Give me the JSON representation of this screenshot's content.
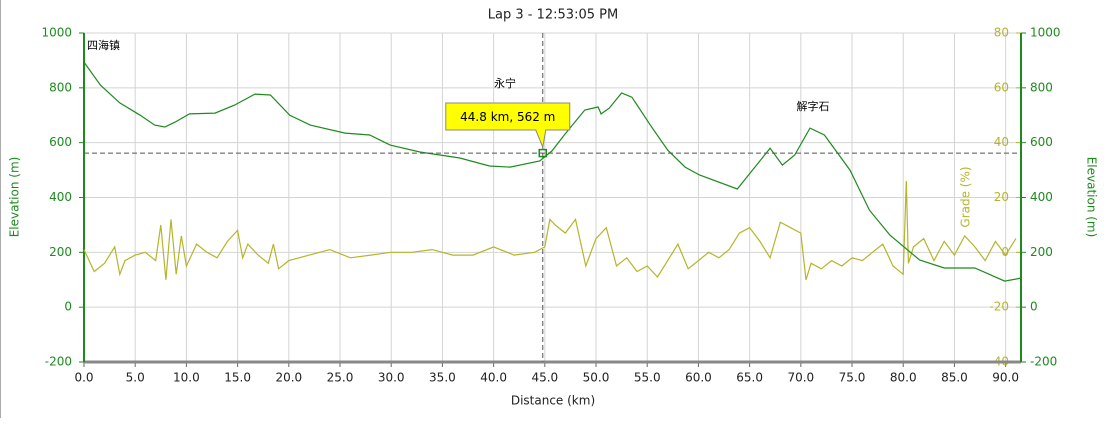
{
  "chart_data": {
    "type": "line",
    "title": "Lap 3 - 12:53:05 PM",
    "x_label": "Distance (km)",
    "y_label": "Elevation (m)",
    "y2_label": "Grade (%)",
    "y3_label": "Elevation (m)",
    "xlim": [
      0,
      91.5
    ],
    "xticks": [
      {
        "value": 0,
        "label": "0.0"
      },
      {
        "value": 5,
        "label": "5.0"
      },
      {
        "value": 10,
        "label": "10.0"
      },
      {
        "value": 15,
        "label": "15.0"
      },
      {
        "value": 20,
        "label": "20.0"
      },
      {
        "value": 25,
        "label": "25.0"
      },
      {
        "value": 30,
        "label": "30.0"
      },
      {
        "value": 35,
        "label": "35.0"
      },
      {
        "value": 40,
        "label": "40.0"
      },
      {
        "value": 45,
        "label": "45.0"
      },
      {
        "value": 50,
        "label": "50.0"
      },
      {
        "value": 55,
        "label": "55.0"
      },
      {
        "value": 60,
        "label": "60.0"
      },
      {
        "value": 65,
        "label": "65.0"
      },
      {
        "value": 70,
        "label": "70.0"
      },
      {
        "value": 75,
        "label": "75.0"
      },
      {
        "value": 80,
        "label": "80.0"
      },
      {
        "value": 85,
        "label": "85.0"
      },
      {
        "value": 90,
        "label": "90.0"
      }
    ],
    "ylim": [
      -200,
      1000
    ],
    "yticks": [
      -200,
      0,
      200,
      400,
      600,
      800,
      1000
    ],
    "y2lim": [
      -40,
      80
    ],
    "y2ticks": [
      -40,
      -20,
      0,
      20,
      40,
      60,
      80
    ],
    "y3ticks": [
      -200,
      0,
      200,
      400,
      600,
      800,
      1000
    ],
    "grid": true,
    "series": [
      {
        "color": "#1e8a1e",
        "x": [
          0,
          1.6,
          3.5,
          5.5,
          6.9,
          7.9,
          8.9,
          10.3,
          12.8,
          14.7,
          16.7,
          18.2,
          20.1,
          22.1,
          25.5,
          27.9,
          29.9,
          32.8,
          36.7,
          39.6,
          41.6,
          44.5,
          45.7,
          46.9,
          48.9,
          50.2,
          50.5,
          51.3,
          52.5,
          53.5,
          55.3,
          57.0,
          58.7,
          60.1,
          63.8,
          67.0,
          68.2,
          69.4,
          70.9,
          72.3,
          74.8,
          76.7,
          78.7,
          81.6,
          84.0,
          87.0,
          89.9,
          91.5
        ],
        "values": [
          894,
          810,
          745,
          700,
          664,
          657,
          675,
          705,
          708,
          737,
          777,
          774,
          700,
          664,
          635,
          628,
          591,
          566,
          544,
          515,
          511,
          533,
          570,
          628,
          719,
          730,
          705,
          726,
          781,
          766,
          664,
          573,
          511,
          482,
          431,
          580,
          518,
          555,
          653,
          628,
          500,
          354,
          263,
          172,
          143,
          143,
          95,
          106
        ]
      },
      {
        "color": "#b5b52a",
        "axis": "y2",
        "x": [
          0,
          1,
          2,
          3,
          3.5,
          4,
          5,
          6,
          7,
          7.5,
          8,
          8.5,
          9,
          9.5,
          10,
          11,
          12,
          13,
          14,
          15,
          15.5,
          16,
          17,
          18,
          18.5,
          19,
          20,
          22,
          24,
          26,
          28,
          30,
          32,
          34,
          36,
          38,
          40,
          42,
          44,
          45,
          45.5,
          46,
          47,
          48,
          49,
          50,
          51,
          52,
          53,
          54,
          55,
          56,
          57,
          58,
          59,
          60,
          61,
          62,
          63,
          64,
          65,
          66,
          67,
          68,
          69,
          70,
          70.5,
          71,
          72,
          73,
          74,
          75,
          76,
          77,
          78,
          79,
          80,
          80.3,
          80.5,
          81,
          82,
          83,
          84,
          85,
          86,
          87,
          88,
          89,
          90,
          91
        ],
        "values": [
          1,
          -7,
          -4,
          2,
          -8,
          -3,
          -1,
          0,
          -3,
          10,
          -10,
          12,
          -8,
          6,
          -5,
          3,
          0,
          -2,
          4,
          8,
          -2,
          3,
          -1,
          -4,
          3,
          -6,
          -3,
          -1,
          1,
          -2,
          -1,
          0,
          0,
          1,
          -1,
          -1,
          2,
          -1,
          0,
          2,
          12,
          10,
          7,
          12,
          -5,
          5,
          9,
          -5,
          -2,
          -7,
          -5,
          -9,
          -3,
          3,
          -6,
          -3,
          0,
          -2,
          1,
          7,
          9,
          4,
          -2,
          11,
          9,
          7,
          -10,
          -4,
          -6,
          -3,
          -5,
          -2,
          -3,
          0,
          3,
          -5,
          -8,
          26,
          -4,
          2,
          5,
          -3,
          4,
          -1,
          6,
          2,
          -3,
          4,
          -1,
          5
        ]
      }
    ],
    "crosshair": {
      "x": 44.8,
      "y": 562,
      "label": "44.8 km, 562 m"
    },
    "annotations": [
      "四海镇",
      "永宁",
      "解字石"
    ]
  }
}
